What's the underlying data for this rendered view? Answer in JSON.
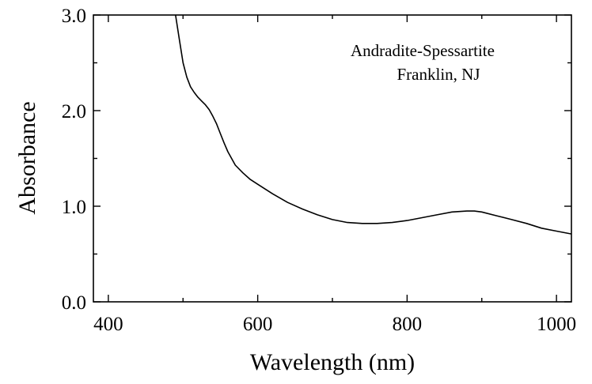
{
  "chart_data": {
    "type": "line",
    "title": "",
    "xlabel": "Wavelength (nm)",
    "ylabel": "Absorbance",
    "xlim": [
      380,
      1020
    ],
    "ylim": [
      0.0,
      3.0
    ],
    "xticks": [
      400,
      600,
      800,
      1000
    ],
    "xtick_labels": [
      "400",
      "600",
      "800",
      "1000"
    ],
    "yticks": [
      0.0,
      1.0,
      2.0,
      3.0
    ],
    "ytick_labels": [
      "0.0",
      "1.0",
      "2.0",
      "3.0"
    ],
    "grid": false,
    "annotations": [
      "Andradite-Spessartite",
      "Franklin, NJ"
    ],
    "series": [
      {
        "x": [
          490,
          495,
          500,
          505,
          510,
          515,
          520,
          525,
          530,
          535,
          540,
          545,
          550,
          555,
          560,
          565,
          570,
          580,
          590,
          600,
          620,
          640,
          660,
          680,
          700,
          720,
          740,
          760,
          780,
          800,
          820,
          840,
          860,
          880,
          890,
          900,
          920,
          940,
          960,
          980,
          1000,
          1020
        ],
        "y": [
          3.0,
          2.75,
          2.5,
          2.35,
          2.25,
          2.19,
          2.14,
          2.1,
          2.06,
          2.01,
          1.94,
          1.86,
          1.76,
          1.66,
          1.57,
          1.5,
          1.43,
          1.35,
          1.28,
          1.23,
          1.13,
          1.04,
          0.97,
          0.91,
          0.86,
          0.83,
          0.82,
          0.82,
          0.83,
          0.85,
          0.88,
          0.91,
          0.94,
          0.95,
          0.95,
          0.94,
          0.9,
          0.86,
          0.82,
          0.77,
          0.74,
          0.71
        ]
      }
    ]
  }
}
